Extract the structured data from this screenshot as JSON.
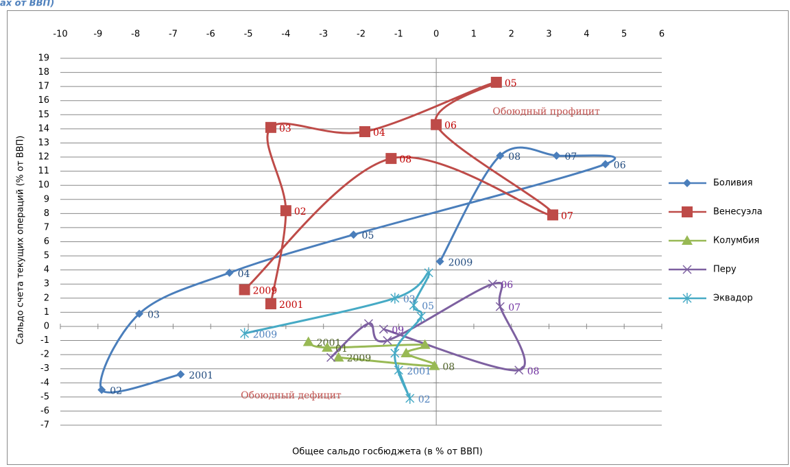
{
  "chart_data": {
    "type": "scatter",
    "smooth": true,
    "title": "ах от ВВП)",
    "x_label": "Общее сальдо госбюджета (в % от ВВП)",
    "y_label": "Сальдо счета текущих операций (% от  ВВП)",
    "annotations": [
      {
        "text": "Обоюдный профицит",
        "x": 1.5,
        "y": 15.2
      },
      {
        "text": "Обоюдный дефицит",
        "x": -5.2,
        "y": -4.9
      }
    ],
    "xlim": [
      -10,
      6
    ],
    "ylim": [
      -7,
      19
    ],
    "xticks": [
      -10,
      -9,
      -8,
      -7,
      -6,
      -5,
      -4,
      -3,
      -2,
      -1,
      0,
      1,
      2,
      3,
      4,
      5,
      6
    ],
    "yticks": [
      -7,
      -6,
      -5,
      -4,
      -3,
      -2,
      -1,
      0,
      1,
      2,
      3,
      4,
      5,
      6,
      7,
      8,
      9,
      10,
      11,
      12,
      13,
      14,
      15,
      16,
      17,
      18,
      19
    ],
    "grid": true,
    "legend": "right",
    "series": [
      {
        "name": "Боливия",
        "color": "#4a7ebb",
        "label_color": "#1f497d",
        "marker": "diamond",
        "x": [
          -6.8,
          -8.9,
          -7.9,
          -5.5,
          -2.2,
          4.5,
          3.2,
          1.7,
          0.1
        ],
        "values": [
          -3.4,
          -4.5,
          0.9,
          3.8,
          6.5,
          11.5,
          12.1,
          12.1,
          4.6
        ],
        "labels": [
          "2001",
          "02",
          "03",
          "04",
          "05",
          "06",
          "07",
          "08",
          "2009"
        ]
      },
      {
        "name": "Венесуэла",
        "color": "#be4b48",
        "label_color": "#c00000",
        "marker": "square",
        "x": [
          -4.4,
          -4.0,
          -4.4,
          -1.9,
          1.6,
          0.0,
          3.1,
          -1.2,
          -5.1
        ],
        "values": [
          1.6,
          8.2,
          14.1,
          13.8,
          17.3,
          14.3,
          7.9,
          11.9,
          2.6
        ],
        "labels": [
          "2001",
          "02",
          "03",
          "04",
          "05",
          "06",
          "07",
          "08",
          "2009"
        ]
      },
      {
        "name": "Колумбия",
        "color": "#98b954",
        "label_color": "#4f6228",
        "marker": "triangle",
        "x": [
          -3.4,
          -2.9,
          -0.3,
          -0.8,
          -0.05,
          -2.6
        ],
        "values": [
          -1.1,
          -1.5,
          -1.3,
          -1.9,
          -2.8,
          -2.2
        ],
        "labels": [
          "2001",
          "01",
          null,
          null,
          "08",
          "2009"
        ]
      },
      {
        "name": "Перу",
        "color": "#7d60a0",
        "label_color": "#7030a0",
        "marker": "x",
        "x": [
          -2.8,
          -1.8,
          -1.3,
          1.5,
          1.7,
          2.2,
          -1.4
        ],
        "values": [
          -2.2,
          0.2,
          -1.0,
          3.0,
          1.4,
          -3.1,
          -0.2
        ],
        "labels": [
          null,
          null,
          null,
          "06",
          "07",
          "08",
          "09"
        ]
      },
      {
        "name": "Эквадор",
        "color": "#46aac5",
        "label_color": "#4f81bd",
        "marker": "star",
        "x": [
          -1.0,
          -0.7,
          -1.1,
          -0.4,
          -0.6,
          -0.2,
          -1.1,
          -5.1
        ],
        "values": [
          -3.1,
          -5.1,
          -1.9,
          0.7,
          1.5,
          3.8,
          2.0,
          -0.5
        ],
        "labels": [
          "2001",
          "02",
          null,
          null,
          "05",
          null,
          "03",
          "2009"
        ]
      }
    ]
  }
}
